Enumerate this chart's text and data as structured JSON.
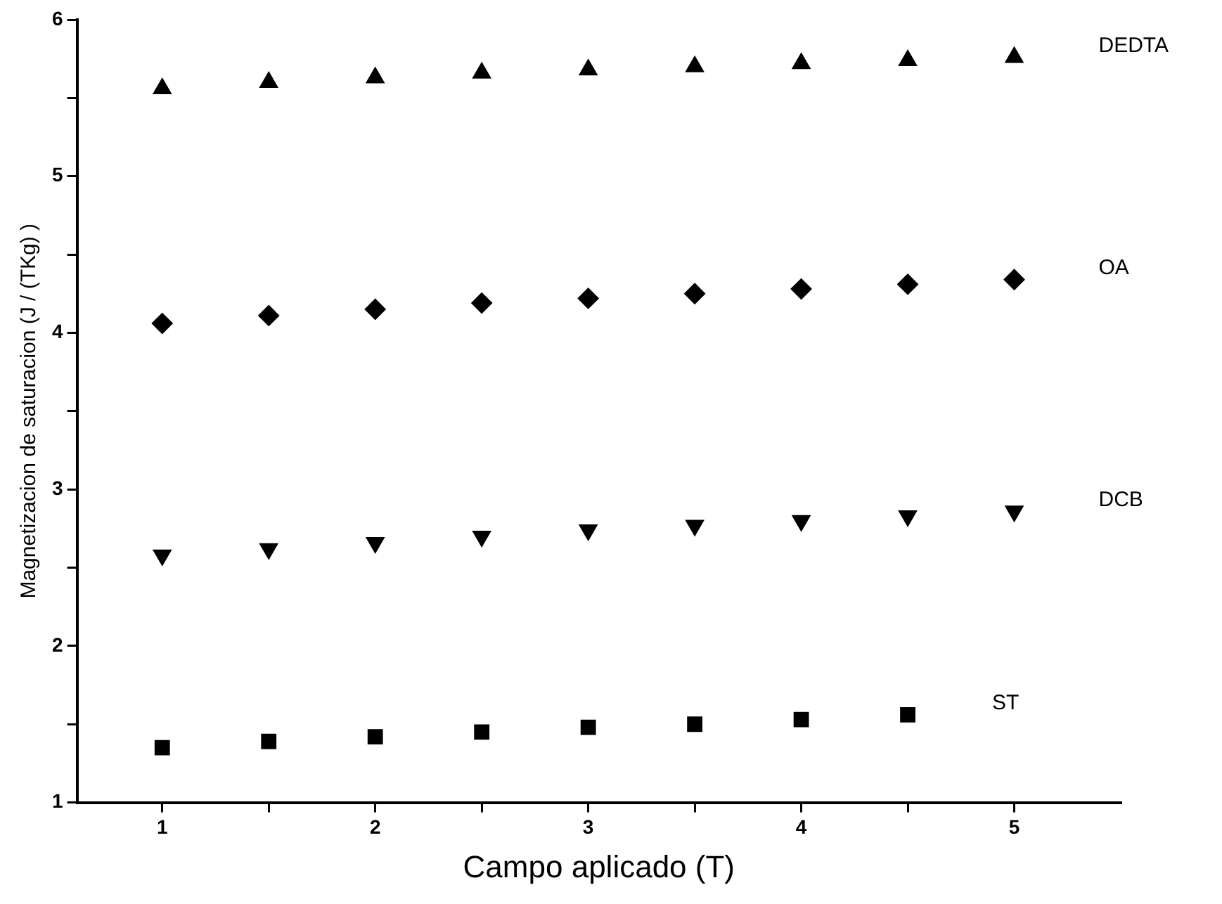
{
  "chart_data": {
    "type": "scatter",
    "xlabel": "Campo aplicado (T)",
    "ylabel": "Magnetizacion de saturacion (J / (TKg) )",
    "x": [
      1,
      1.5,
      2,
      2.5,
      3,
      3.5,
      4,
      4.5,
      5
    ],
    "series": [
      {
        "name": "DEDTA",
        "color": "#000000",
        "marker": "triangle",
        "values": [
          5.56,
          5.6,
          5.63,
          5.66,
          5.68,
          5.7,
          5.72,
          5.74,
          5.76
        ]
      },
      {
        "name": "OA",
        "color": "#000000",
        "marker": "diamond",
        "values": [
          4.06,
          4.11,
          4.15,
          4.19,
          4.22,
          4.25,
          4.28,
          4.31,
          4.34
        ]
      },
      {
        "name": "DCB",
        "color": "#000000",
        "marker": "triangle-down",
        "values": [
          2.58,
          2.62,
          2.66,
          2.7,
          2.74,
          2.77,
          2.8,
          2.83,
          2.86
        ]
      },
      {
        "name": "ST",
        "color": "#000000",
        "marker": "square",
        "values": [
          1.35,
          1.39,
          1.42,
          1.45,
          1.48,
          1.5,
          1.53,
          1.56,
          null
        ]
      }
    ],
    "xlim": [
      0.6,
      5.5
    ],
    "xticks": [
      1,
      {
        "value": 1.5,
        "label": null
      },
      2,
      {
        "value": 2.5,
        "label": null
      },
      3,
      {
        "value": 3.5,
        "label": null
      },
      4,
      {
        "value": 4.5,
        "label": null
      },
      5
    ],
    "ylim": [
      1,
      6
    ],
    "yticks": [
      1,
      {
        "value": 1.5,
        "label": null
      },
      2,
      {
        "value": 2.5,
        "label": null
      },
      3,
      {
        "value": 3.5,
        "label": null
      },
      4,
      {
        "value": 4.5,
        "label": null
      },
      5,
      {
        "value": 5.5,
        "label": null
      },
      6
    ],
    "grid": false,
    "legend": false
  }
}
